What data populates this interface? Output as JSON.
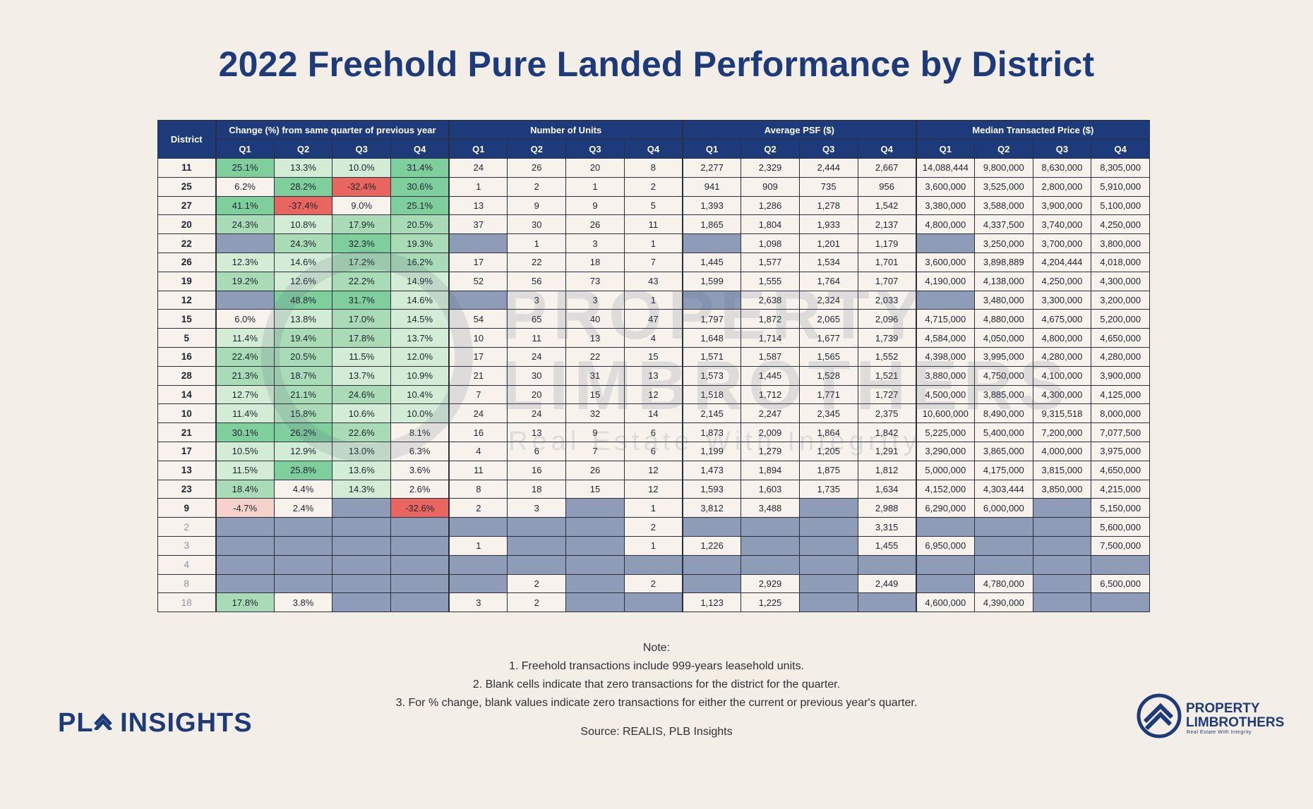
{
  "title": "2022 Freehold Pure Landed Performance by District",
  "watermark": {
    "line1": "PROPERTY",
    "line2": "LIMBROTHERS",
    "line3": "Real Estate With Integrity"
  },
  "notes": {
    "heading": "Note:",
    "items": [
      "1. Freehold transactions include 999-years leasehold units.",
      "2. Blank cells indicate that zero transactions for the district for the quarter.",
      "3. For % change, blank values indicate zero transactions for either the current or previous year's quarter."
    ],
    "source": "Source: REALIS, PLB Insights"
  },
  "logo_left": {
    "text_a": "PL",
    "text_b": "INSIGHTS"
  },
  "logo_right": {
    "line1": "PROPERTY",
    "line2": "LIMBROTHERS",
    "tagline": "Real Estate With Integrity"
  },
  "colors": {
    "header_bg": "#1d3a7a",
    "blank_cell": "#8e9cb7",
    "green_strong": "#7fcf9c",
    "green_mid": "#a9dcb6",
    "green_light": "#d3ecd6",
    "red_strong": "#e8665f",
    "red_light": "#f7d2cb"
  },
  "chart_data": {
    "type": "table",
    "title": "2022 Freehold Pure Landed Performance by District",
    "district_header": "District",
    "groups": [
      {
        "name": "Change (%) from same quarter of previous year",
        "key": "change"
      },
      {
        "name": "Number of Units",
        "key": "units"
      },
      {
        "name": "Average PSF ($)",
        "key": "psf"
      },
      {
        "name": "Median Transacted Price ($)",
        "key": "median"
      }
    ],
    "quarters": [
      "Q1",
      "Q2",
      "Q3",
      "Q4"
    ],
    "rows": [
      {
        "district": "11",
        "change": [
          "25.1%",
          "13.3%",
          "10.0%",
          "31.4%"
        ],
        "units": [
          "24",
          "26",
          "20",
          "8"
        ],
        "psf": [
          "2,277",
          "2,329",
          "2,444",
          "2,667"
        ],
        "median": [
          "14,088,444",
          "9,800,000",
          "8,630,000",
          "8,305,000"
        ]
      },
      {
        "district": "25",
        "change": [
          "6.2%",
          "28.2%",
          "-32.4%",
          "30.6%"
        ],
        "units": [
          "1",
          "2",
          "1",
          "2"
        ],
        "psf": [
          "941",
          "909",
          "735",
          "956"
        ],
        "median": [
          "3,600,000",
          "3,525,000",
          "2,800,000",
          "5,910,000"
        ]
      },
      {
        "district": "27",
        "change": [
          "41.1%",
          "-37.4%",
          "9.0%",
          "25.1%"
        ],
        "units": [
          "13",
          "9",
          "9",
          "5"
        ],
        "psf": [
          "1,393",
          "1,286",
          "1,278",
          "1,542"
        ],
        "median": [
          "3,380,000",
          "3,588,000",
          "3,900,000",
          "5,100,000"
        ]
      },
      {
        "district": "20",
        "change": [
          "24.3%",
          "10.8%",
          "17.9%",
          "20.5%"
        ],
        "units": [
          "37",
          "30",
          "26",
          "11"
        ],
        "psf": [
          "1,865",
          "1,804",
          "1,933",
          "2,137"
        ],
        "median": [
          "4,800,000",
          "4,337,500",
          "3,740,000",
          "4,250,000"
        ]
      },
      {
        "district": "22",
        "change": [
          "",
          "24.3%",
          "32.3%",
          "19.3%"
        ],
        "units": [
          "",
          "1",
          "3",
          "1"
        ],
        "psf": [
          "",
          "1,098",
          "1,201",
          "1,179"
        ],
        "median": [
          "",
          "3,250,000",
          "3,700,000",
          "3,800,000"
        ]
      },
      {
        "district": "26",
        "change": [
          "12.3%",
          "14.6%",
          "17.2%",
          "16.2%"
        ],
        "units": [
          "17",
          "22",
          "18",
          "7"
        ],
        "psf": [
          "1,445",
          "1,577",
          "1,534",
          "1,701"
        ],
        "median": [
          "3,600,000",
          "3,898,889",
          "4,204,444",
          "4,018,000"
        ]
      },
      {
        "district": "19",
        "change": [
          "19.2%",
          "12.6%",
          "22.2%",
          "14.9%"
        ],
        "units": [
          "52",
          "56",
          "73",
          "43"
        ],
        "psf": [
          "1,599",
          "1,555",
          "1,764",
          "1,707"
        ],
        "median": [
          "4,190,000",
          "4,138,000",
          "4,250,000",
          "4,300,000"
        ]
      },
      {
        "district": "12",
        "change": [
          "",
          "48.8%",
          "31.7%",
          "14.6%"
        ],
        "units": [
          "",
          "3",
          "3",
          "1"
        ],
        "psf": [
          "",
          "2,638",
          "2,324",
          "2,033"
        ],
        "median": [
          "",
          "3,480,000",
          "3,300,000",
          "3,200,000"
        ]
      },
      {
        "district": "15",
        "change": [
          "6.0%",
          "13.8%",
          "17.0%",
          "14.5%"
        ],
        "units": [
          "54",
          "65",
          "40",
          "47"
        ],
        "psf": [
          "1,797",
          "1,872",
          "2,065",
          "2,096"
        ],
        "median": [
          "4,715,000",
          "4,880,000",
          "4,675,000",
          "5,200,000"
        ]
      },
      {
        "district": "5",
        "change": [
          "11.4%",
          "19.4%",
          "17.8%",
          "13.7%"
        ],
        "units": [
          "10",
          "11",
          "13",
          "4"
        ],
        "psf": [
          "1,648",
          "1,714",
          "1,677",
          "1,739"
        ],
        "median": [
          "4,584,000",
          "4,050,000",
          "4,800,000",
          "4,650,000"
        ]
      },
      {
        "district": "16",
        "change": [
          "22.4%",
          "20.5%",
          "11.5%",
          "12.0%"
        ],
        "units": [
          "17",
          "24",
          "22",
          "15"
        ],
        "psf": [
          "1,571",
          "1,587",
          "1,565",
          "1,552"
        ],
        "median": [
          "4,398,000",
          "3,995,000",
          "4,280,000",
          "4,280,000"
        ]
      },
      {
        "district": "28",
        "change": [
          "21.3%",
          "18.7%",
          "13.7%",
          "10.9%"
        ],
        "units": [
          "21",
          "30",
          "31",
          "13"
        ],
        "psf": [
          "1,573",
          "1,445",
          "1,528",
          "1,521"
        ],
        "median": [
          "3,880,000",
          "4,750,000",
          "4,100,000",
          "3,900,000"
        ]
      },
      {
        "district": "14",
        "change": [
          "12.7%",
          "21.1%",
          "24.6%",
          "10.4%"
        ],
        "units": [
          "7",
          "20",
          "15",
          "12"
        ],
        "psf": [
          "1,518",
          "1,712",
          "1,771",
          "1,727"
        ],
        "median": [
          "4,500,000",
          "3,885,000",
          "4,300,000",
          "4,125,000"
        ]
      },
      {
        "district": "10",
        "change": [
          "11.4%",
          "15.8%",
          "10.6%",
          "10.0%"
        ],
        "units": [
          "24",
          "24",
          "32",
          "14"
        ],
        "psf": [
          "2,145",
          "2,247",
          "2,345",
          "2,375"
        ],
        "median": [
          "10,600,000",
          "8,490,000",
          "9,315,518",
          "8,000,000"
        ]
      },
      {
        "district": "21",
        "change": [
          "30.1%",
          "26.2%",
          "22.6%",
          "8.1%"
        ],
        "units": [
          "16",
          "13",
          "9",
          "6"
        ],
        "psf": [
          "1,873",
          "2,009",
          "1,864",
          "1,842"
        ],
        "median": [
          "5,225,000",
          "5,400,000",
          "7,200,000",
          "7,077,500"
        ]
      },
      {
        "district": "17",
        "change": [
          "10.5%",
          "12.9%",
          "13.0%",
          "6.3%"
        ],
        "units": [
          "4",
          "6",
          "7",
          "6"
        ],
        "psf": [
          "1,199",
          "1,279",
          "1,205",
          "1,291"
        ],
        "median": [
          "3,290,000",
          "3,865,000",
          "4,000,000",
          "3,975,000"
        ]
      },
      {
        "district": "13",
        "change": [
          "11.5%",
          "25.8%",
          "13.6%",
          "3.6%"
        ],
        "units": [
          "11",
          "16",
          "26",
          "12"
        ],
        "psf": [
          "1,473",
          "1,894",
          "1,875",
          "1,812"
        ],
        "median": [
          "5,000,000",
          "4,175,000",
          "3,815,000",
          "4,650,000"
        ]
      },
      {
        "district": "23",
        "change": [
          "18.4%",
          "4.4%",
          "14.3%",
          "2.6%"
        ],
        "units": [
          "8",
          "18",
          "15",
          "12"
        ],
        "psf": [
          "1,593",
          "1,603",
          "1,735",
          "1,634"
        ],
        "median": [
          "4,152,000",
          "4,303,444",
          "3,850,000",
          "4,215,000"
        ]
      },
      {
        "district": "9",
        "change": [
          "-4.7%",
          "2.4%",
          "",
          "-32.6%"
        ],
        "units": [
          "2",
          "3",
          "",
          "1"
        ],
        "psf": [
          "3,812",
          "3,488",
          "",
          "2,988"
        ],
        "median": [
          "6,290,000",
          "6,000,000",
          "",
          "5,150,000"
        ]
      },
      {
        "district": "2",
        "change": [
          "",
          "",
          "",
          ""
        ],
        "units": [
          "",
          "",
          "",
          "2"
        ],
        "psf": [
          "",
          "",
          "",
          "3,315"
        ],
        "median": [
          "",
          "",
          "",
          "5,600,000"
        ]
      },
      {
        "district": "3",
        "change": [
          "",
          "",
          "",
          ""
        ],
        "units": [
          "1",
          "",
          "",
          "1"
        ],
        "psf": [
          "1,226",
          "",
          "",
          "1,455"
        ],
        "median": [
          "6,950,000",
          "",
          "",
          "7,500,000"
        ]
      },
      {
        "district": "4",
        "change": [
          "",
          "",
          "",
          ""
        ],
        "units": [
          "",
          "",
          "",
          ""
        ],
        "psf": [
          "",
          "",
          "",
          ""
        ],
        "median": [
          "",
          "",
          "",
          ""
        ]
      },
      {
        "district": "8",
        "change": [
          "",
          "",
          "",
          ""
        ],
        "units": [
          "",
          "2",
          "",
          "2"
        ],
        "psf": [
          "",
          "2,929",
          "",
          "2,449"
        ],
        "median": [
          "",
          "4,780,000",
          "",
          "6,500,000"
        ]
      },
      {
        "district": "18",
        "change": [
          "17.8%",
          "3.8%",
          "",
          ""
        ],
        "units": [
          "3",
          "2",
          "",
          ""
        ],
        "psf": [
          "1,123",
          "1,225",
          "",
          ""
        ],
        "median": [
          "4,600,000",
          "4,390,000",
          "",
          ""
        ]
      }
    ],
    "faded_districts": [
      "2",
      "3",
      "4",
      "8",
      "18"
    ]
  }
}
